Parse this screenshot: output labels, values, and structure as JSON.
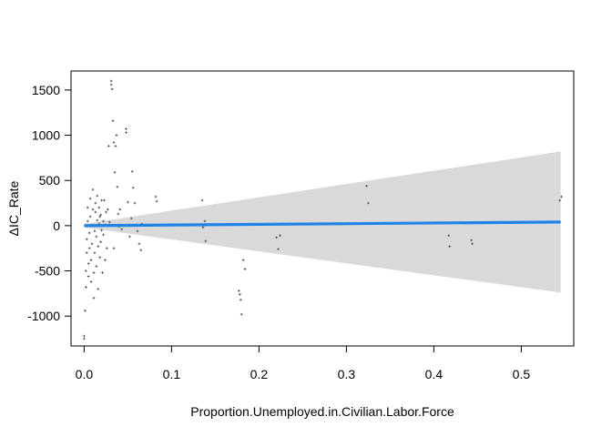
{
  "chart_data": {
    "type": "scatter",
    "xlabel": "Proportion.Unemployed.in.Civilian.Labor.Force",
    "ylabel": "ΔIC_Rate",
    "xlim": [
      -0.015,
      0.56
    ],
    "ylim": [
      -1330,
      1710
    ],
    "x_ticks": [
      0.0,
      0.1,
      0.2,
      0.3,
      0.4,
      0.5
    ],
    "x_tick_labels": [
      "0.0",
      "0.1",
      "0.2",
      "0.3",
      "0.4",
      "0.5"
    ],
    "y_ticks": [
      -1000,
      -500,
      0,
      500,
      1000,
      1500
    ],
    "y_tick_labels": [
      "-1000",
      "-500",
      "0",
      "500",
      "1000",
      "1500"
    ],
    "grid": false,
    "colors": {
      "points": "#555555",
      "fit_line": "#1e82e6",
      "confidence_band": "#d9d9d9",
      "frame": "#000000"
    },
    "series": [
      {
        "kind": "points",
        "points": [
          [
            0.0,
            -1220
          ],
          [
            0.0,
            -1250
          ],
          [
            0.001,
            -940
          ],
          [
            0.002,
            -680
          ],
          [
            0.002,
            -500
          ],
          [
            0.003,
            -300
          ],
          [
            0.003,
            -150
          ],
          [
            0.004,
            50
          ],
          [
            0.004,
            200
          ],
          [
            0.005,
            -560
          ],
          [
            0.005,
            -420
          ],
          [
            0.006,
            -250
          ],
          [
            0.006,
            -80
          ],
          [
            0.007,
            100
          ],
          [
            0.007,
            300
          ],
          [
            0.008,
            -620
          ],
          [
            0.008,
            -380
          ],
          [
            0.009,
            -200
          ],
          [
            0.009,
            10
          ],
          [
            0.01,
            180
          ],
          [
            0.01,
            400
          ],
          [
            0.011,
            -800
          ],
          [
            0.011,
            -520
          ],
          [
            0.012,
            -300
          ],
          [
            0.012,
            -60
          ],
          [
            0.013,
            150
          ],
          [
            0.013,
            250
          ],
          [
            0.014,
            -450
          ],
          [
            0.014,
            -120
          ],
          [
            0.015,
            60
          ],
          [
            0.015,
            330
          ],
          [
            0.016,
            -700
          ],
          [
            0.016,
            -230
          ],
          [
            0.017,
            20
          ],
          [
            0.017,
            200
          ],
          [
            0.018,
            -350
          ],
          [
            0.018,
            100
          ],
          [
            0.019,
            -180
          ],
          [
            0.019,
            120
          ],
          [
            0.02,
            280
          ],
          [
            0.02,
            -50
          ],
          [
            0.021,
            -520
          ],
          [
            0.022,
            -100
          ],
          [
            0.022,
            50
          ],
          [
            0.023,
            280
          ],
          [
            0.024,
            -380
          ],
          [
            0.024,
            10
          ],
          [
            0.025,
            150
          ],
          [
            0.026,
            -250
          ],
          [
            0.027,
            180
          ],
          [
            0.028,
            880
          ],
          [
            0.029,
            40
          ],
          [
            0.031,
            1600
          ],
          [
            0.031,
            1560
          ],
          [
            0.032,
            1510
          ],
          [
            0.033,
            1160
          ],
          [
            0.034,
            920
          ],
          [
            0.034,
            -250
          ],
          [
            0.035,
            590
          ],
          [
            0.036,
            880
          ],
          [
            0.037,
            1000
          ],
          [
            0.038,
            430
          ],
          [
            0.039,
            130
          ],
          [
            0.04,
            -10
          ],
          [
            0.041,
            180
          ],
          [
            0.043,
            -40
          ],
          [
            0.048,
            1070
          ],
          [
            0.048,
            1030
          ],
          [
            0.05,
            260
          ],
          [
            0.052,
            -120
          ],
          [
            0.054,
            80
          ],
          [
            0.055,
            600
          ],
          [
            0.056,
            420
          ],
          [
            0.058,
            250
          ],
          [
            0.061,
            -60
          ],
          [
            0.063,
            -200
          ],
          [
            0.065,
            -270
          ],
          [
            0.066,
            20
          ],
          [
            0.082,
            320
          ],
          [
            0.083,
            270
          ],
          [
            0.135,
            280
          ],
          [
            0.136,
            -20
          ],
          [
            0.138,
            50
          ],
          [
            0.139,
            -170
          ],
          [
            0.177,
            -720
          ],
          [
            0.178,
            -760
          ],
          [
            0.179,
            -820
          ],
          [
            0.18,
            -980
          ],
          [
            0.182,
            -380
          ],
          [
            0.184,
            -480
          ],
          [
            0.22,
            -130
          ],
          [
            0.222,
            -260
          ],
          [
            0.224,
            -110
          ],
          [
            0.323,
            440
          ],
          [
            0.325,
            250
          ],
          [
            0.417,
            -110
          ],
          [
            0.418,
            -230
          ],
          [
            0.443,
            -160
          ],
          [
            0.444,
            -200
          ],
          [
            0.544,
            280
          ],
          [
            0.546,
            320
          ]
        ]
      },
      {
        "kind": "fit_line",
        "x": [
          0.0,
          0.545
        ],
        "y": [
          0,
          40
        ]
      },
      {
        "kind": "confidence_band",
        "x": [
          0.0,
          0.545
        ],
        "upper": [
          20,
          820
        ],
        "lower": [
          -20,
          -740
        ]
      }
    ]
  }
}
